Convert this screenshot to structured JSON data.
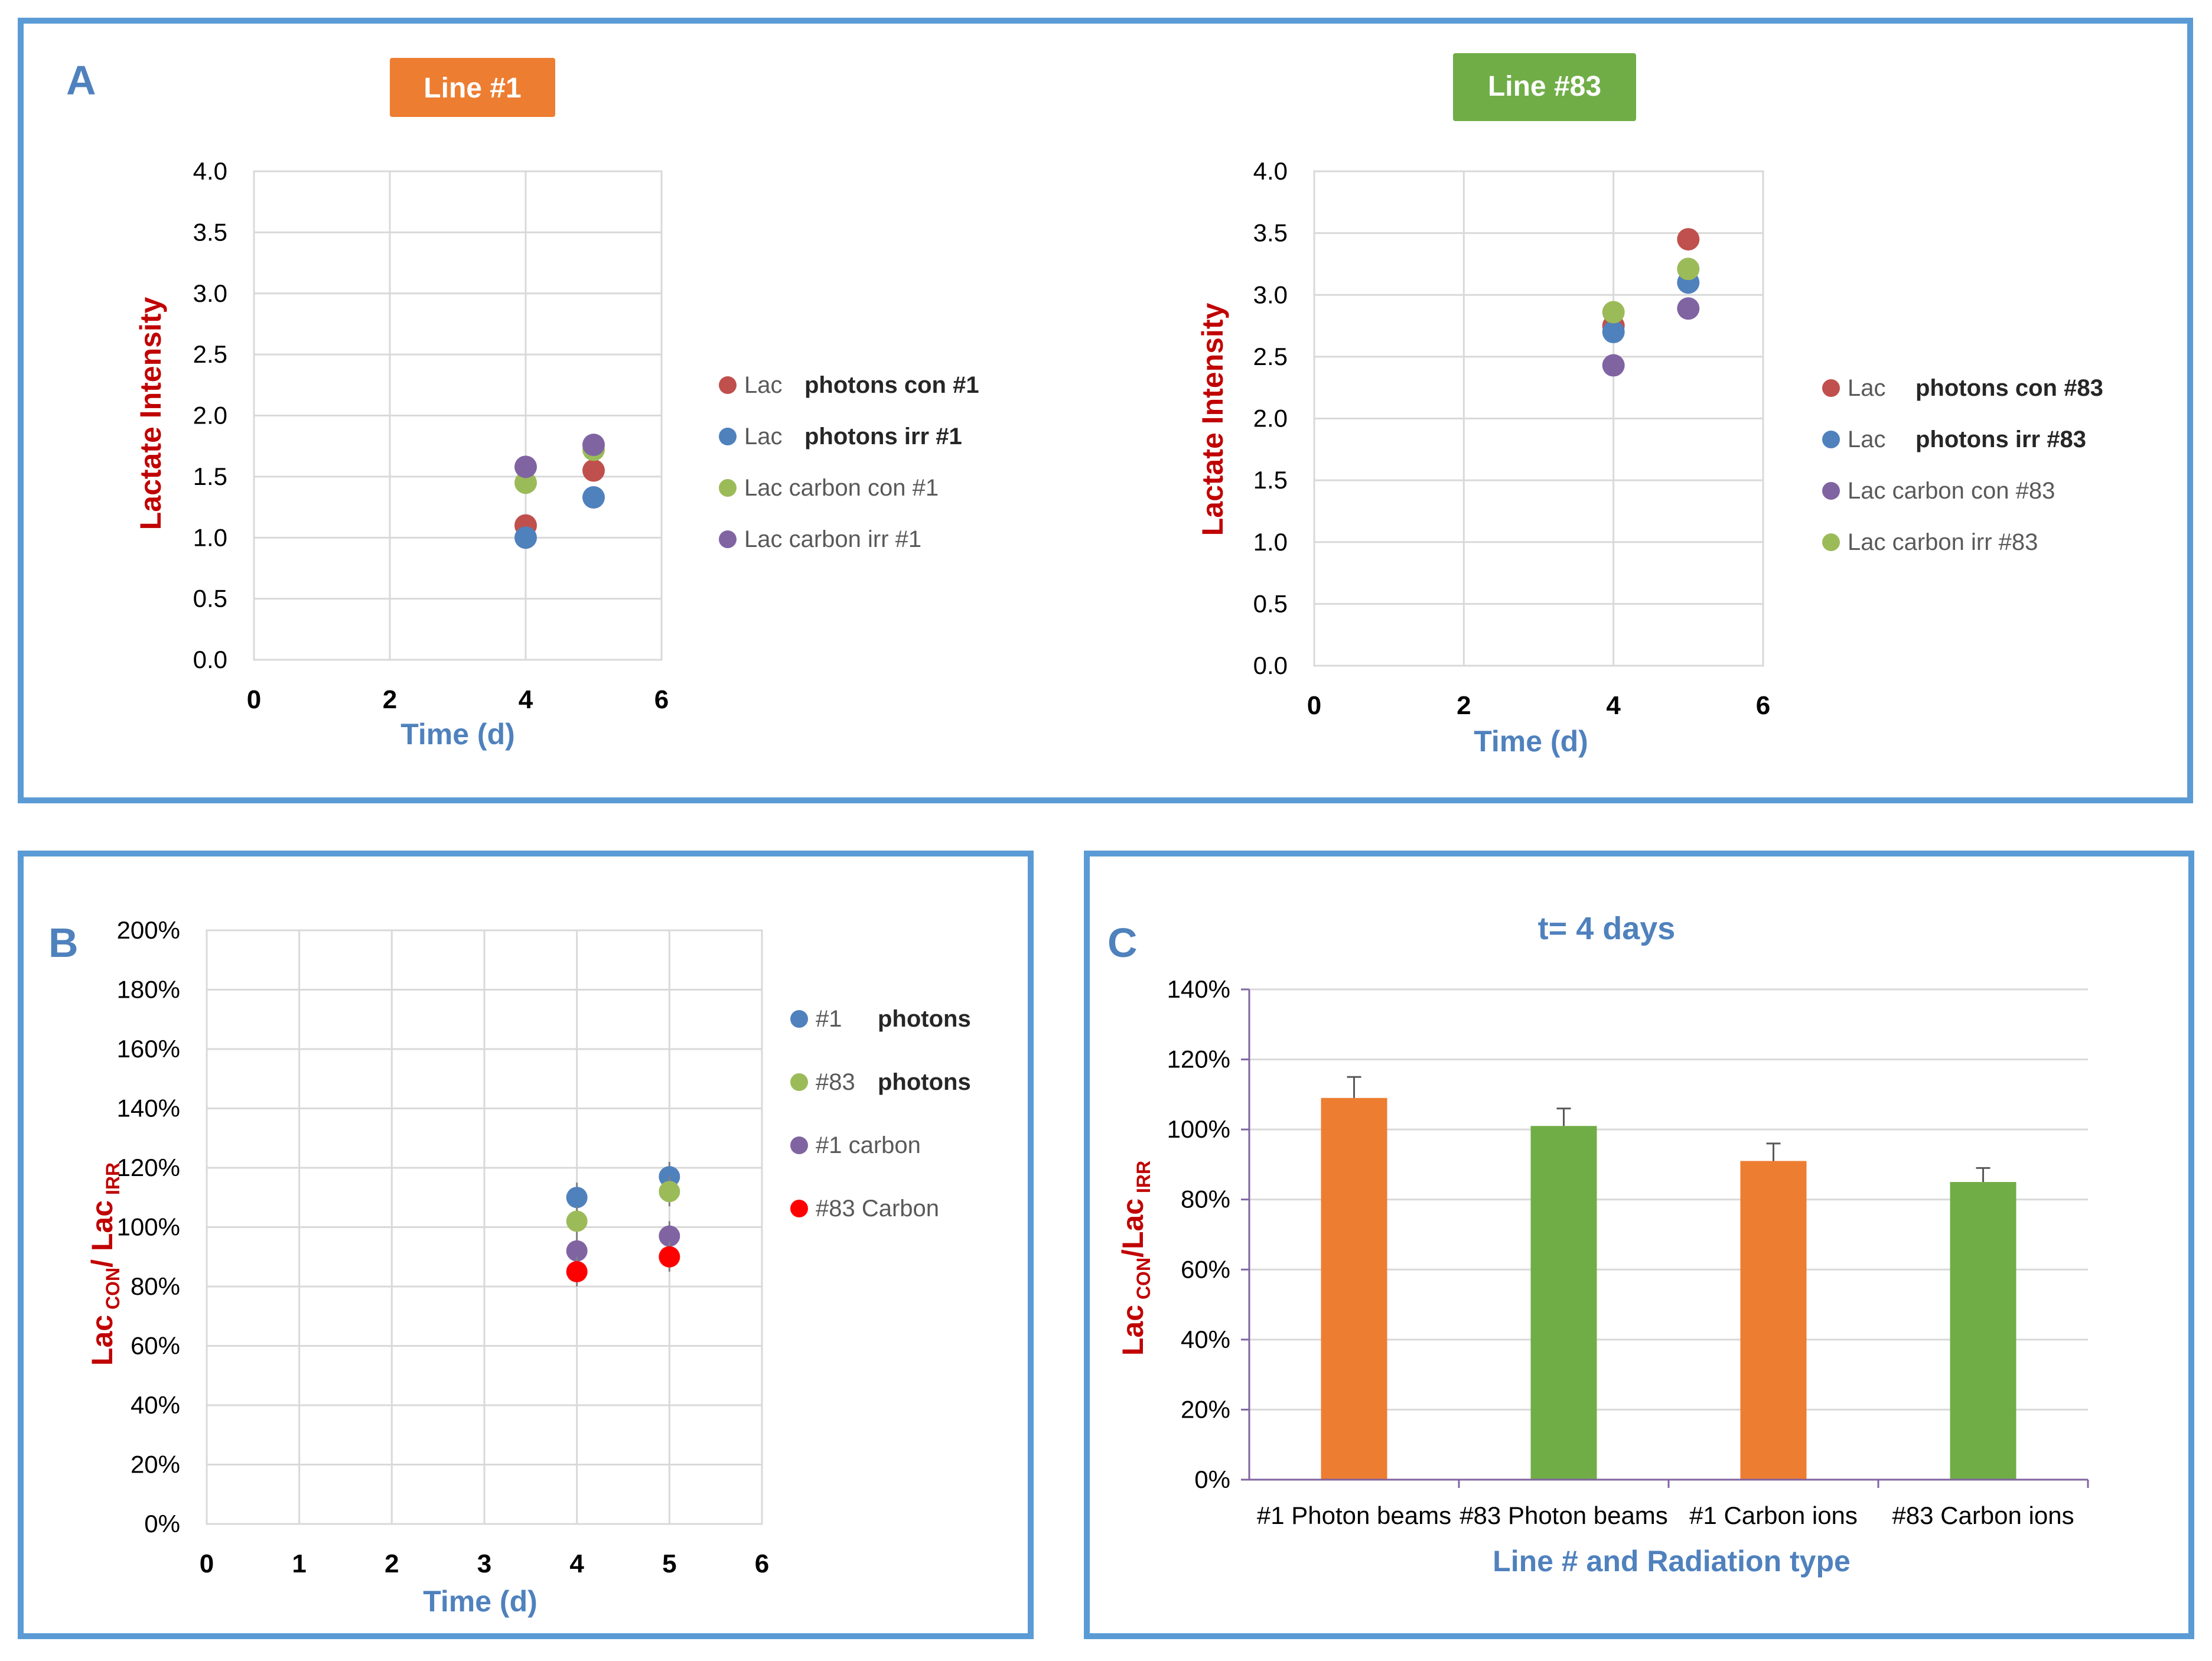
{
  "panel_labels": {
    "a": "A",
    "b": "B",
    "c": "C"
  },
  "chart_data": [
    {
      "id": "A1",
      "type": "scatter",
      "badge": "Line #1",
      "badge_color": "#ed7d31",
      "xlabel": "Time (d)",
      "ylabel": "Lactate Intensity",
      "xlim": [
        0,
        6
      ],
      "ylim": [
        0,
        4
      ],
      "xticks": [
        "0",
        "2",
        "4",
        "6"
      ],
      "yticks": [
        "0.0",
        "0.5",
        "1.0",
        "1.5",
        "2.0",
        "2.5",
        "3.0",
        "3.5",
        "4.0"
      ],
      "series": [
        {
          "prefix": "Lac",
          "name": "photons con #1",
          "color": "#c0504d",
          "x": [
            4,
            5
          ],
          "y": [
            1.1,
            1.55
          ]
        },
        {
          "prefix": "Lac",
          "name": "photons irr #1",
          "color": "#4f81bd",
          "x": [
            4,
            5
          ],
          "y": [
            1.0,
            1.33
          ]
        },
        {
          "prefix": "",
          "name": "Lac carbon con #1",
          "color": "#9bbb59",
          "x": [
            4,
            5
          ],
          "y": [
            1.45,
            1.72
          ]
        },
        {
          "prefix": "",
          "name": "Lac carbon irr #1",
          "color": "#8064a2",
          "x": [
            4,
            5
          ],
          "y": [
            1.58,
            1.76
          ]
        }
      ]
    },
    {
      "id": "A83",
      "type": "scatter",
      "badge": "Line #83",
      "badge_color": "#70ad47",
      "xlabel": "Time (d)",
      "ylabel": "Lactate Intensity",
      "xlim": [
        0,
        6
      ],
      "ylim": [
        0,
        4
      ],
      "xticks": [
        "0",
        "2",
        "4",
        "6"
      ],
      "yticks": [
        "0.0",
        "0.5",
        "1.0",
        "1.5",
        "2.0",
        "2.5",
        "3.0",
        "3.5",
        "4.0"
      ],
      "series": [
        {
          "prefix": "Lac",
          "name": "photons con #83",
          "color": "#c0504d",
          "x": [
            4,
            5
          ],
          "y": [
            2.75,
            3.45
          ]
        },
        {
          "prefix": "Lac",
          "name": "photons irr #83",
          "color": "#4f81bd",
          "x": [
            4,
            5
          ],
          "y": [
            2.7,
            3.1
          ]
        },
        {
          "prefix": "",
          "name": "Lac carbon con #83",
          "color": "#8064a2",
          "x": [
            4,
            5
          ],
          "y": [
            2.43,
            2.89
          ]
        },
        {
          "prefix": "",
          "name": "Lac carbon irr #83",
          "color": "#9bbb59",
          "x": [
            4,
            5
          ],
          "y": [
            2.86,
            3.21
          ]
        }
      ]
    },
    {
      "id": "B",
      "type": "scatter",
      "xlabel": "Time (d)",
      "ylabel": "Lac CON/ Lac IRR",
      "xlim": [
        0,
        6
      ],
      "ylim": [
        0,
        200
      ],
      "xticks": [
        "0",
        "1",
        "2",
        "3",
        "4",
        "5",
        "6"
      ],
      "yticks": [
        "0%",
        "20%",
        "40%",
        "60%",
        "80%",
        "100%",
        "120%",
        "140%",
        "160%",
        "180%",
        "200%"
      ],
      "series": [
        {
          "prefix": "#1",
          "name": "photons",
          "color": "#4f81bd",
          "x": [
            4,
            5
          ],
          "y": [
            110,
            117
          ]
        },
        {
          "prefix": "#83",
          "name": "photons",
          "color": "#9bbb59",
          "x": [
            4,
            5
          ],
          "y": [
            102,
            112
          ]
        },
        {
          "prefix": "",
          "name": "#1 carbon",
          "color": "#8064a2",
          "x": [
            4,
            5
          ],
          "y": [
            92,
            97
          ]
        },
        {
          "prefix": "",
          "name": "#83 Carbon",
          "color": "#ff0000",
          "x": [
            4,
            5
          ],
          "y": [
            85,
            90
          ]
        }
      ]
    },
    {
      "id": "C",
      "type": "bar",
      "title": "t= 4 days",
      "xlabel": "Line # and Radiation type",
      "ylabel": "Lac CON/Lac IRR",
      "ylim": [
        0,
        140
      ],
      "yticks": [
        "0%",
        "20%",
        "40%",
        "60%",
        "80%",
        "100%",
        "120%",
        "140%"
      ],
      "categories": [
        "#1 Photon beams",
        "#83 Photon beams",
        "#1 Carbon ions",
        "#83 Carbon ions"
      ],
      "values": [
        109,
        101,
        91,
        85
      ],
      "errors": [
        6,
        5,
        5,
        4
      ],
      "colors": [
        "#ed7d31",
        "#70ad47",
        "#ed7d31",
        "#70ad47"
      ]
    }
  ]
}
